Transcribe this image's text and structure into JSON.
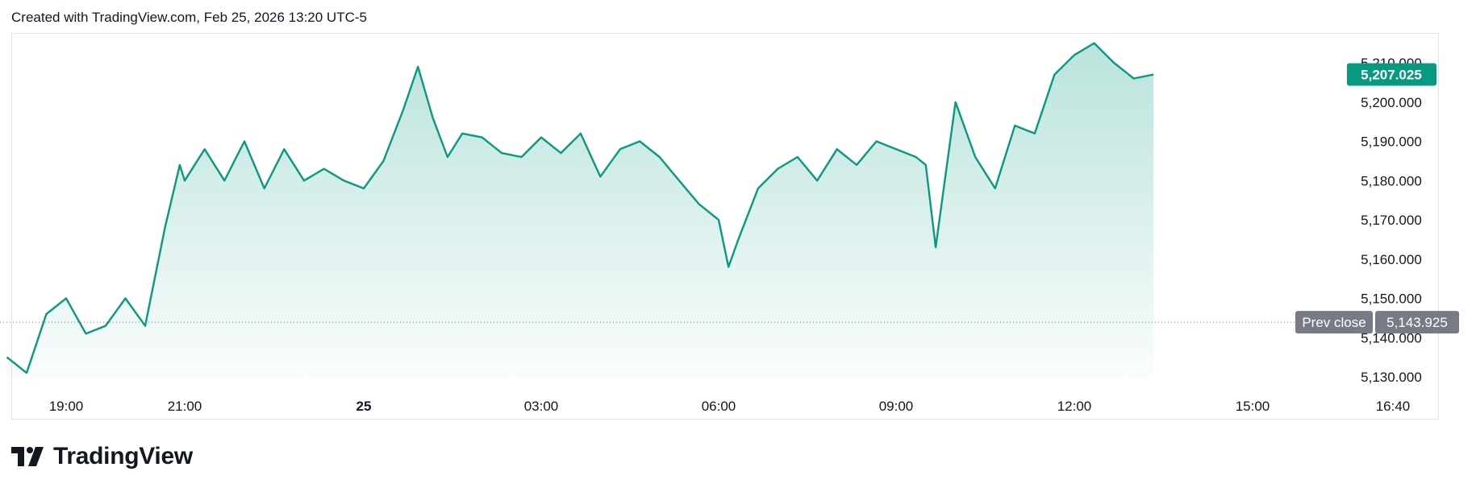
{
  "header": {
    "text": "Created with TradingView.com, Feb 25, 2026 13:20 UTC-5"
  },
  "brand": {
    "name": "TradingView",
    "icon": "tradingview-logo-icon"
  },
  "colors": {
    "line": "#089981",
    "area_top": "#089981",
    "prev_close_label_bg": "#787b86",
    "last_price_bg": "#089981"
  },
  "chart_data": {
    "type": "area",
    "title": "",
    "xlabel": "",
    "ylabel": "",
    "grid": false,
    "x_ticks": [
      "19:00",
      "21:00",
      "25",
      "03:00",
      "06:00",
      "09:00",
      "12:00",
      "15:00",
      "16:40"
    ],
    "y_ticks": [
      "5,130.000",
      "5,140.000",
      "5,150.000",
      "5,160.000",
      "5,170.000",
      "5,180.000",
      "5,190.000",
      "5,200.000",
      "5,210.000"
    ],
    "ylim": [
      5126,
      5217
    ],
    "last_price": {
      "value": 5207.025,
      "label": "5,207.025"
    },
    "prev_close": {
      "value": 5143.925,
      "label": "5,143.925",
      "title": "Prev close"
    },
    "series": [
      {
        "x": [
          "18:00",
          "18:20",
          "18:40",
          "19:00",
          "19:20",
          "19:40",
          "20:00",
          "20:20",
          "20:40",
          "20:55",
          "21:00",
          "21:20",
          "21:40",
          "22:00",
          "22:20",
          "22:40",
          "23:00",
          "23:20",
          "23:40",
          "00:00",
          "00:20",
          "00:40",
          "00:55",
          "01:10",
          "01:25",
          "01:40",
          "02:00",
          "02:20",
          "02:40",
          "03:00",
          "03:20",
          "03:40",
          "04:00",
          "04:20",
          "04:40",
          "05:00",
          "05:20",
          "05:40",
          "06:00",
          "06:10",
          "06:20",
          "06:40",
          "07:00",
          "07:20",
          "07:40",
          "08:00",
          "08:20",
          "08:40",
          "09:00",
          "09:20",
          "09:30",
          "09:40",
          "10:00",
          "10:20",
          "10:40",
          "11:00",
          "11:20",
          "11:40",
          "12:00",
          "12:20",
          "12:40",
          "13:00",
          "13:20"
        ],
        "values": [
          5135,
          5131,
          5146,
          5150,
          5141,
          5143,
          5150,
          5143,
          5168,
          5184,
          5180,
          5188,
          5180,
          5190,
          5178,
          5188,
          5180,
          5183,
          5180,
          5178,
          5185,
          5198,
          5209,
          5196,
          5186,
          5192,
          5191,
          5187,
          5186,
          5191,
          5187,
          5192,
          5181,
          5188,
          5190,
          5186,
          5180,
          5174,
          5170,
          5158,
          5165,
          5178,
          5183,
          5186,
          5180,
          5188,
          5184,
          5190,
          5188,
          5186,
          5184,
          5163,
          5200,
          5186,
          5178,
          5194,
          5192,
          5207,
          5212,
          5215,
          5210,
          5206,
          5207
        ]
      }
    ]
  }
}
